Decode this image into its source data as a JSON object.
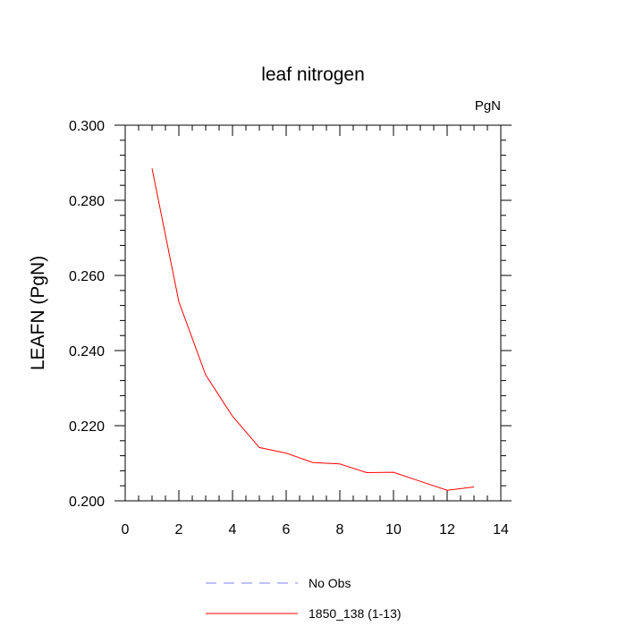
{
  "chart_data": {
    "type": "line",
    "title": "leaf nitrogen",
    "units_label": "PgN",
    "xlabel": "",
    "ylabel": "LEAFN  (PgN)",
    "xlim": [
      0,
      14
    ],
    "ylim": [
      0.2,
      0.3
    ],
    "x_ticks": [
      0,
      2,
      4,
      6,
      8,
      10,
      12,
      14
    ],
    "x_tick_labels": [
      "0",
      "2",
      "4",
      "6",
      "8",
      "10",
      "12",
      "14"
    ],
    "y_ticks": [
      0.2,
      0.22,
      0.24,
      0.26,
      0.28,
      0.3
    ],
    "y_tick_labels": [
      "0.200",
      "0.220",
      "0.240",
      "0.260",
      "0.280",
      "0.300"
    ],
    "grid": false,
    "legend_position": "bottom-center",
    "series": [
      {
        "name": "1850_138 (1-13)",
        "color": "#ff0000",
        "style": "solid",
        "x": [
          1,
          2,
          3,
          4,
          5,
          6,
          7,
          8,
          9,
          10,
          11,
          12,
          13
        ],
        "y": [
          0.2885,
          0.253,
          0.2335,
          0.2225,
          0.2142,
          0.2127,
          0.2102,
          0.2098,
          0.2075,
          0.2076,
          0.2052,
          0.2028,
          0.2037
        ]
      }
    ],
    "legend": [
      {
        "name": "No Obs",
        "color": "#8080ff",
        "style": "dashed"
      },
      {
        "name": "1850_138 (1-13)",
        "color": "#ff0000",
        "style": "solid"
      }
    ]
  }
}
